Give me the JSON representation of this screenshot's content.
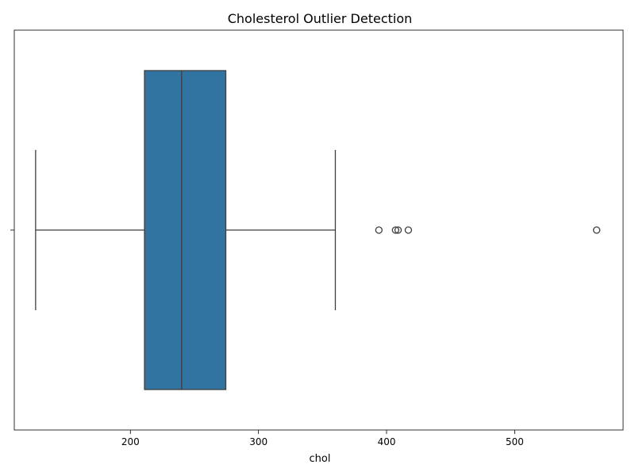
{
  "chart_data": {
    "type": "boxplot",
    "orientation": "horizontal",
    "title": "Cholesterol Outlier Detection",
    "xlabel": "chol",
    "ylabel": "",
    "xlim": [
      109.35,
      584.65
    ],
    "xticks": [
      200,
      300,
      400,
      500
    ],
    "xtick_labels": [
      "200",
      "300",
      "400",
      "500"
    ],
    "grid": false,
    "legend": "none",
    "box": {
      "whisker_low": 126,
      "q1": 211,
      "median": 240,
      "q3": 274.5,
      "whisker_high": 360
    },
    "outliers": [
      394,
      407,
      409,
      417,
      564
    ],
    "colors": {
      "box_fill": "#3274a1",
      "lines": "#3f3f3f",
      "spine": "#000000"
    }
  }
}
